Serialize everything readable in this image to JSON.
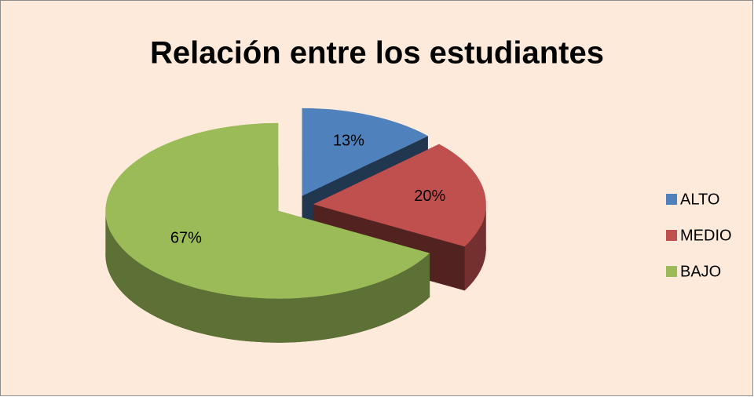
{
  "chart_data": {
    "type": "pie",
    "title": "Relación entre los estudiantes",
    "categories": [
      "ALTO",
      "MEDIO",
      "BAJO"
    ],
    "values": [
      13,
      20,
      67
    ],
    "value_labels": [
      "13%",
      "20%",
      "67%"
    ],
    "colors": [
      "#4f81bd",
      "#c0504d",
      "#9bbb59"
    ],
    "legend": "right"
  }
}
